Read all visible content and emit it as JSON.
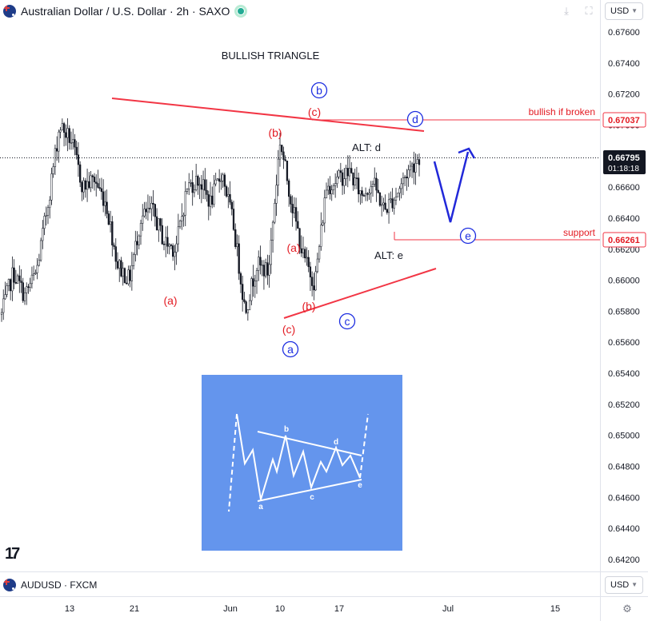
{
  "header": {
    "symbol_title": "Australian Dollar / U.S. Dollar · 2h · SAXO",
    "icons": [
      "australia-flag-icon",
      "live-status-icon",
      "download-icon",
      "fullscreen-icon"
    ]
  },
  "currency_top": "USD",
  "currency_bottom": "USD",
  "footer": {
    "symbol": "AUDUSD · FXCM"
  },
  "logo_text": "17",
  "colors": {
    "trendline": "#f23645",
    "wave": "#2962ff",
    "red_label": "#e31b23",
    "blue_label": "#1d2ee0",
    "candles": "#131722",
    "inset_bg": "#6495ed"
  },
  "chart_data": {
    "type": "candlestick",
    "title": "BULLISH TRIANGLE",
    "y_ticks": [
      "0.67600",
      "0.67400",
      "0.67200",
      "0.67000",
      "0.66800",
      "0.66600",
      "0.66400",
      "0.66200",
      "0.66000",
      "0.65800",
      "0.65600",
      "0.65400",
      "0.65200",
      "0.65000",
      "0.64800",
      "0.64600",
      "0.64400",
      "0.64200"
    ],
    "x_ticks": [
      "13",
      "21",
      "Jun",
      "10",
      "17",
      "Jul",
      "15"
    ],
    "ylim": [
      0.6415,
      0.6775
    ],
    "price_tags": [
      {
        "label": "0.67037",
        "value": 0.67037,
        "style": "red-outline"
      },
      {
        "label": "0.66795",
        "value": 0.66795,
        "style": "black",
        "sub": "01:18:18"
      },
      {
        "label": "0.66261",
        "value": 0.66261,
        "style": "red-outline"
      }
    ],
    "horizontal_levels": [
      {
        "name": "bullish if broken",
        "value": 0.67037
      },
      {
        "name": "support",
        "value": 0.66261
      }
    ],
    "price_series": [
      [
        "2024-05-09",
        0.6578
      ],
      [
        "2024-05-10",
        0.6605
      ],
      [
        "2024-05-13",
        0.659
      ],
      [
        "2024-05-14",
        0.6605
      ],
      [
        "2024-05-15",
        0.665
      ],
      [
        "2024-05-16",
        0.67
      ],
      [
        "2024-05-17",
        0.669
      ],
      [
        "2024-05-20",
        0.666
      ],
      [
        "2024-05-21",
        0.6665
      ],
      [
        "2024-05-22",
        0.665
      ],
      [
        "2024-05-23",
        0.661
      ],
      [
        "2024-05-24",
        0.66
      ],
      [
        "2024-05-27",
        0.664
      ],
      [
        "2024-05-28",
        0.6645
      ],
      [
        "2024-05-29",
        0.6625
      ],
      [
        "2024-05-30",
        0.662
      ],
      [
        "2024-05-31",
        0.666
      ],
      [
        "2024-06-03",
        0.6665
      ],
      [
        "2024-06-04",
        0.665
      ],
      [
        "2024-06-05",
        0.667
      ],
      [
        "2024-06-06",
        0.6635
      ],
      [
        "2024-06-07",
        0.658
      ],
      [
        "2024-06-10",
        0.661
      ],
      [
        "2024-06-11",
        0.6605
      ],
      [
        "2024-06-12",
        0.669
      ],
      [
        "2024-06-13",
        0.665
      ],
      [
        "2024-06-14",
        0.6615
      ],
      [
        "2024-06-17",
        0.6598
      ],
      [
        "2024-06-18",
        0.666
      ],
      [
        "2024-06-19",
        0.6665
      ],
      [
        "2024-06-20",
        0.667
      ],
      [
        "2024-06-21",
        0.6655
      ],
      [
        "2024-06-24",
        0.6663
      ],
      [
        "2024-06-25",
        0.6645
      ],
      [
        "2024-06-26",
        0.6655
      ],
      [
        "2024-06-27",
        0.667
      ],
      [
        "2024-06-28",
        0.66795
      ]
    ],
    "wave_labels": [
      {
        "text": "(a)",
        "color": "red"
      },
      {
        "text": "(b)",
        "color": "red"
      },
      {
        "text": "(c)",
        "color": "red"
      },
      {
        "text": "b",
        "color": "blue",
        "circled": true
      },
      {
        "text": "d",
        "color": "blue",
        "circled": true
      },
      {
        "text": "ALT: d",
        "color": "black"
      },
      {
        "text": "(a)",
        "color": "red"
      },
      {
        "text": "(b)",
        "color": "red"
      },
      {
        "text": "(c)",
        "color": "red"
      },
      {
        "text": "a",
        "color": "blue",
        "circled": true
      },
      {
        "text": "c",
        "color": "blue",
        "circled": true
      },
      {
        "text": "e",
        "color": "blue",
        "circled": true
      },
      {
        "text": "ALT: e",
        "color": "black"
      }
    ],
    "inset_labels": [
      "b",
      "d",
      "a",
      "c",
      "e"
    ]
  }
}
